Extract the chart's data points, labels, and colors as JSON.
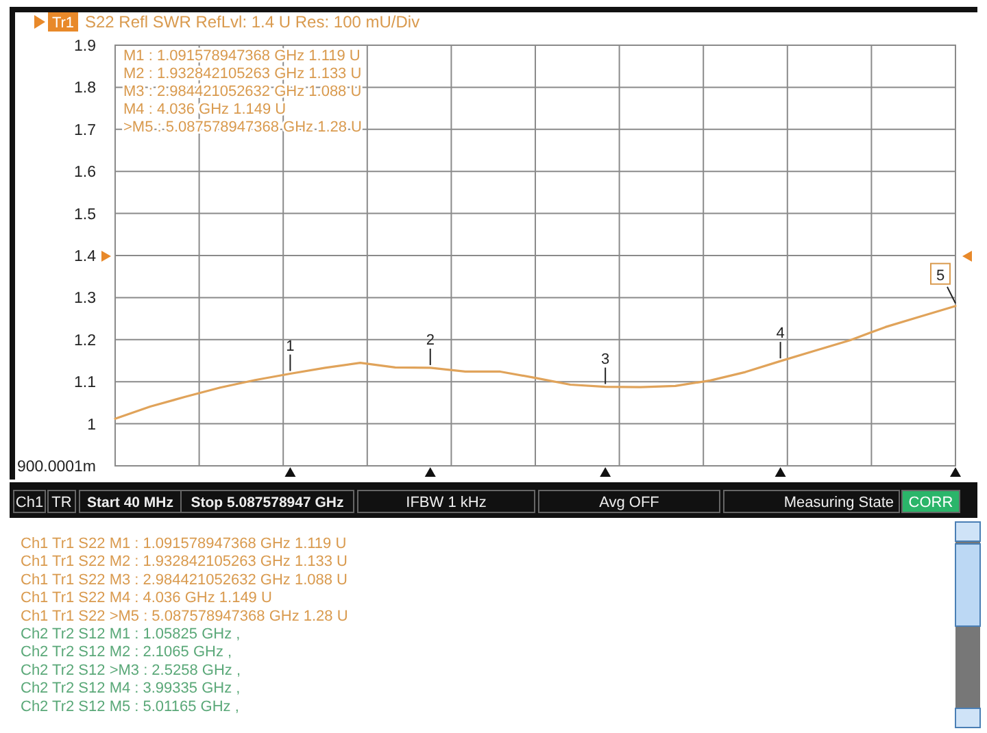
{
  "chart_data": {
    "type": "line",
    "title": "S22 Refl SWR RefLvl: 1.4  U Res: 100 mU/Div",
    "categories": [
      null,
      null,
      null,
      null,
      null,
      null,
      null,
      null,
      null,
      null,
      null,
      null,
      null,
      null,
      null,
      null,
      null,
      null,
      null,
      null,
      null,
      null,
      null,
      null,
      null
    ],
    "series": [
      {
        "color": "#e0a35a",
        "values": [
          1.012,
          1.041,
          1.064,
          1.086,
          1.104,
          1.119,
          1.133,
          1.145,
          1.134,
          1.133,
          1.124,
          1.124,
          1.109,
          1.093,
          1.088,
          1.087,
          1.09,
          1.103,
          1.123,
          1.149,
          1.174,
          1.199,
          1.23,
          1.255,
          1.28
        ]
      }
    ],
    "ylim": [
      0.9,
      1.9
    ],
    "yticks": [
      1,
      1.1,
      1.2,
      1.3,
      1.4,
      1.5,
      1.6,
      1.7,
      1.8,
      1.9
    ],
    "grid": true,
    "tick_labels": "y",
    "marker": "none",
    "line_style": "solid",
    "annotations": [
      "Tr1",
      "M1  :  1.091578947368 GHz  1.119  U",
      "M2  :  1.932842105263 GHz  1.133  U",
      "M3  :  2.984421052632 GHz  1.088  U",
      "M4  :  4.036 GHz  1.149  U",
      ">M5  :  5.087578947368 GHz  1.28  U",
      "Ch1",
      "TR",
      "Start 40 MHz",
      "Stop 5.087578947 GHz",
      "IFBW 1 kHz",
      "Avg OFF",
      "Measuring State",
      "CORR",
      "Ch1 Tr1  S22   M1  :  1.091578947368 GHz 1.119  U",
      "Ch1 Tr1  S22   M2  :  1.932842105263 GHz 1.133  U",
      "Ch1 Tr1  S22   M3  :  2.984421052632 GHz 1.088  U",
      "Ch1 Tr1  S22   M4  :  4.036 GHz 1.149  U",
      "Ch1 Tr1  S22 >M5  :  5.087578947368 GHz 1.28  U",
      "Ch2 Tr2  S12   M1  :  1.05825 GHz ,",
      "Ch2 Tr2  S12   M2  :  2.1065 GHz ,",
      "Ch2 Tr2  S12 >M3  :  2.5258 GHz ,",
      "Ch2 Tr2  S12   M4  :  3.99335 GHz ,",
      "Ch2 Tr2  S12   M5  :  5.01165 GHz ,",
      "900.0001m",
      {
        "text": "1",
        "y": 1.119
      },
      {
        "text": "2",
        "y": 1.133
      },
      {
        "text": "3",
        "y": 1.088
      },
      {
        "text": "4",
        "y": 1.149
      },
      {
        "text": "5",
        "y": 1.28
      }
    ]
  }
}
